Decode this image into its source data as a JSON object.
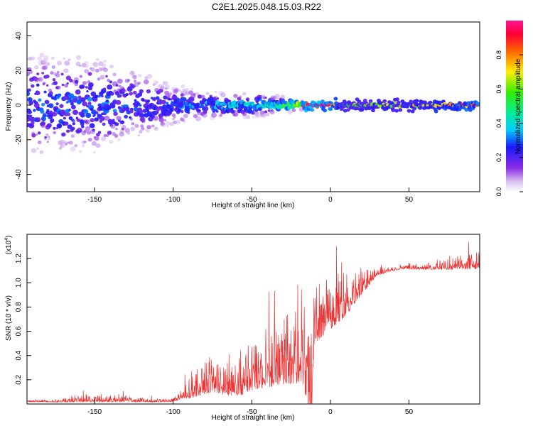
{
  "title": "C2E1.2025.048.15.03.R22",
  "colors": {
    "snr_line": "#ee3333",
    "frame": "#000000"
  },
  "chart_data": [
    {
      "type": "heatmap",
      "xlabel": "Height of straight line (km)",
      "ylabel": "Frequency (Hz)",
      "xlim": [
        -193,
        95
      ],
      "ylim": [
        -50,
        48
      ],
      "xticks": [
        -150,
        -100,
        -50,
        0,
        50
      ],
      "xtick_labels": [
        "-150",
        "-100",
        "-50",
        "0",
        "50"
      ],
      "yticks": [
        -40,
        -20,
        0,
        20,
        40
      ],
      "ytick_labels": [
        "-40",
        "-20",
        "0",
        "20",
        "40"
      ],
      "colorbar": {
        "label": "Normalized spectral amplitude",
        "range": [
          0.0,
          1.0
        ],
        "ticks": [
          0.0,
          0.2,
          0.4,
          0.6,
          0.8
        ],
        "tick_labels": [
          "0.0",
          "0.2",
          "0.4",
          "0.6",
          "0.8"
        ]
      },
      "profile": [
        {
          "x": -193,
          "amp": 0.3,
          "spread": 30
        },
        {
          "x": -150,
          "amp": 0.3,
          "spread": 28
        },
        {
          "x": -120,
          "amp": 0.28,
          "spread": 20
        },
        {
          "x": -100,
          "amp": 0.28,
          "spread": 12
        },
        {
          "x": -80,
          "amp": 0.35,
          "spread": 8
        },
        {
          "x": -60,
          "amp": 0.4,
          "spread": 7
        },
        {
          "x": -40,
          "amp": 0.45,
          "spread": 6
        },
        {
          "x": -25,
          "amp": 0.55,
          "spread": 4
        },
        {
          "x": -18,
          "amp": 0.95,
          "spread": 2
        },
        {
          "x": 0,
          "amp": 0.95,
          "spread": 2
        },
        {
          "x": 8,
          "amp": 0.6,
          "spread": 2
        },
        {
          "x": 40,
          "amp": 0.65,
          "spread": 2
        },
        {
          "x": 70,
          "amp": 0.75,
          "spread": 2
        },
        {
          "x": 95,
          "amp": 0.85,
          "spread": 2
        }
      ]
    },
    {
      "type": "line",
      "xlabel": "Height of straight line (km)",
      "ylabel": "SNR (10 * v/v)",
      "y_multiplier_label": "(x10",
      "y_multiplier_exp": "4",
      "y_multiplier_close": ")",
      "xlim": [
        -193,
        95
      ],
      "ylim": [
        0,
        1.4
      ],
      "xticks": [
        -150,
        -100,
        -50,
        0,
        50
      ],
      "xtick_labels": [
        "-150",
        "-100",
        "-50",
        "0",
        "50"
      ],
      "yticks": [
        0.2,
        0.4,
        0.6,
        0.8,
        1.0,
        1.2
      ],
      "ytick_labels": [
        "0.2",
        "0.4",
        "0.6",
        "0.8",
        "1.0",
        "1.2"
      ],
      "envelope": [
        {
          "x": -193,
          "base": 0.02,
          "amp": 0.01
        },
        {
          "x": -170,
          "base": 0.02,
          "amp": 0.02
        },
        {
          "x": -160,
          "base": 0.03,
          "amp": 0.05
        },
        {
          "x": -130,
          "base": 0.03,
          "amp": 0.04
        },
        {
          "x": -110,
          "base": 0.02,
          "amp": 0.02
        },
        {
          "x": -100,
          "base": 0.03,
          "amp": 0.03
        },
        {
          "x": -90,
          "base": 0.08,
          "amp": 0.12
        },
        {
          "x": -80,
          "base": 0.15,
          "amp": 0.22
        },
        {
          "x": -75,
          "base": 0.18,
          "amp": 0.28
        },
        {
          "x": -65,
          "base": 0.12,
          "amp": 0.18
        },
        {
          "x": -55,
          "base": 0.15,
          "amp": 0.25
        },
        {
          "x": -50,
          "base": 0.2,
          "amp": 0.3
        },
        {
          "x": -45,
          "base": 0.22,
          "amp": 0.3
        },
        {
          "x": -35,
          "base": 0.25,
          "amp": 0.35
        },
        {
          "x": -25,
          "base": 0.3,
          "amp": 0.45
        },
        {
          "x": -18,
          "base": 0.3,
          "amp": 0.5
        },
        {
          "x": -12,
          "base": 0.05,
          "amp": 0.45
        },
        {
          "x": -10,
          "base": 0.6,
          "amp": 0.35
        },
        {
          "x": 0,
          "base": 0.7,
          "amp": 0.3
        },
        {
          "x": 10,
          "base": 0.8,
          "amp": 0.25
        },
        {
          "x": 20,
          "base": 0.95,
          "amp": 0.15
        },
        {
          "x": 30,
          "base": 1.08,
          "amp": 0.05
        },
        {
          "x": 45,
          "base": 1.12,
          "amp": 0.02
        },
        {
          "x": 60,
          "base": 1.12,
          "amp": 0.04
        },
        {
          "x": 75,
          "base": 1.13,
          "amp": 0.07
        },
        {
          "x": 95,
          "base": 1.15,
          "amp": 0.12
        }
      ]
    }
  ]
}
